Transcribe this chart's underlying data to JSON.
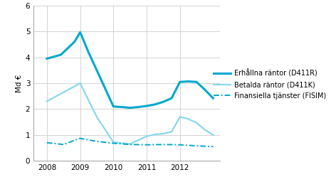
{
  "ylabel": "Md €",
  "xlim": [
    2007.6,
    2013.2
  ],
  "ylim": [
    0,
    6
  ],
  "yticks": [
    0,
    1,
    2,
    3,
    4,
    5,
    6
  ],
  "xticks": [
    2008,
    2009,
    2010,
    2011,
    2012
  ],
  "series": [
    {
      "label": "Erhållna räntor (D411R)",
      "color": "#00a8cc",
      "linewidth": 2.2,
      "linestyle": "solid",
      "x": [
        2008,
        2008.42,
        2008.83,
        2009,
        2009.25,
        2009.5,
        2009.75,
        2010,
        2010.25,
        2010.5,
        2010.75,
        2011,
        2011.25,
        2011.5,
        2011.75,
        2012,
        2012.25,
        2012.5,
        2012.75,
        2013
      ],
      "y": [
        3.95,
        4.1,
        4.6,
        4.97,
        4.2,
        3.5,
        2.8,
        2.1,
        2.08,
        2.05,
        2.08,
        2.12,
        2.18,
        2.28,
        2.42,
        3.05,
        3.07,
        3.05,
        2.75,
        2.42
      ]
    },
    {
      "label": "Betalda räntor (D411K)",
      "color": "#88d8ee",
      "linewidth": 1.6,
      "linestyle": "solid",
      "x": [
        2008,
        2008.5,
        2009,
        2009.5,
        2010,
        2010.5,
        2011,
        2011.25,
        2011.5,
        2011.75,
        2012,
        2012.25,
        2012.5,
        2012.75,
        2013
      ],
      "y": [
        2.3,
        2.65,
        3.0,
        1.7,
        0.72,
        0.65,
        0.95,
        1.02,
        1.05,
        1.12,
        1.7,
        1.62,
        1.47,
        1.2,
        1.0
      ]
    },
    {
      "label": "Finansiella tjänster (FISIM)",
      "color": "#00a8cc",
      "linewidth": 1.4,
      "linestyle": "dashdot",
      "x": [
        2008,
        2008.5,
        2009,
        2009.5,
        2010,
        2010.5,
        2011,
        2011.5,
        2012,
        2012.5,
        2013
      ],
      "y": [
        0.7,
        0.63,
        0.87,
        0.75,
        0.68,
        0.63,
        0.62,
        0.63,
        0.62,
        0.58,
        0.55
      ]
    }
  ],
  "background_color": "#ffffff",
  "grid_color": "#cccccc",
  "figsize": [
    4.72,
    2.63
  ],
  "dpi": 100,
  "legend_fontsize": 7.0,
  "tick_fontsize": 7.5
}
